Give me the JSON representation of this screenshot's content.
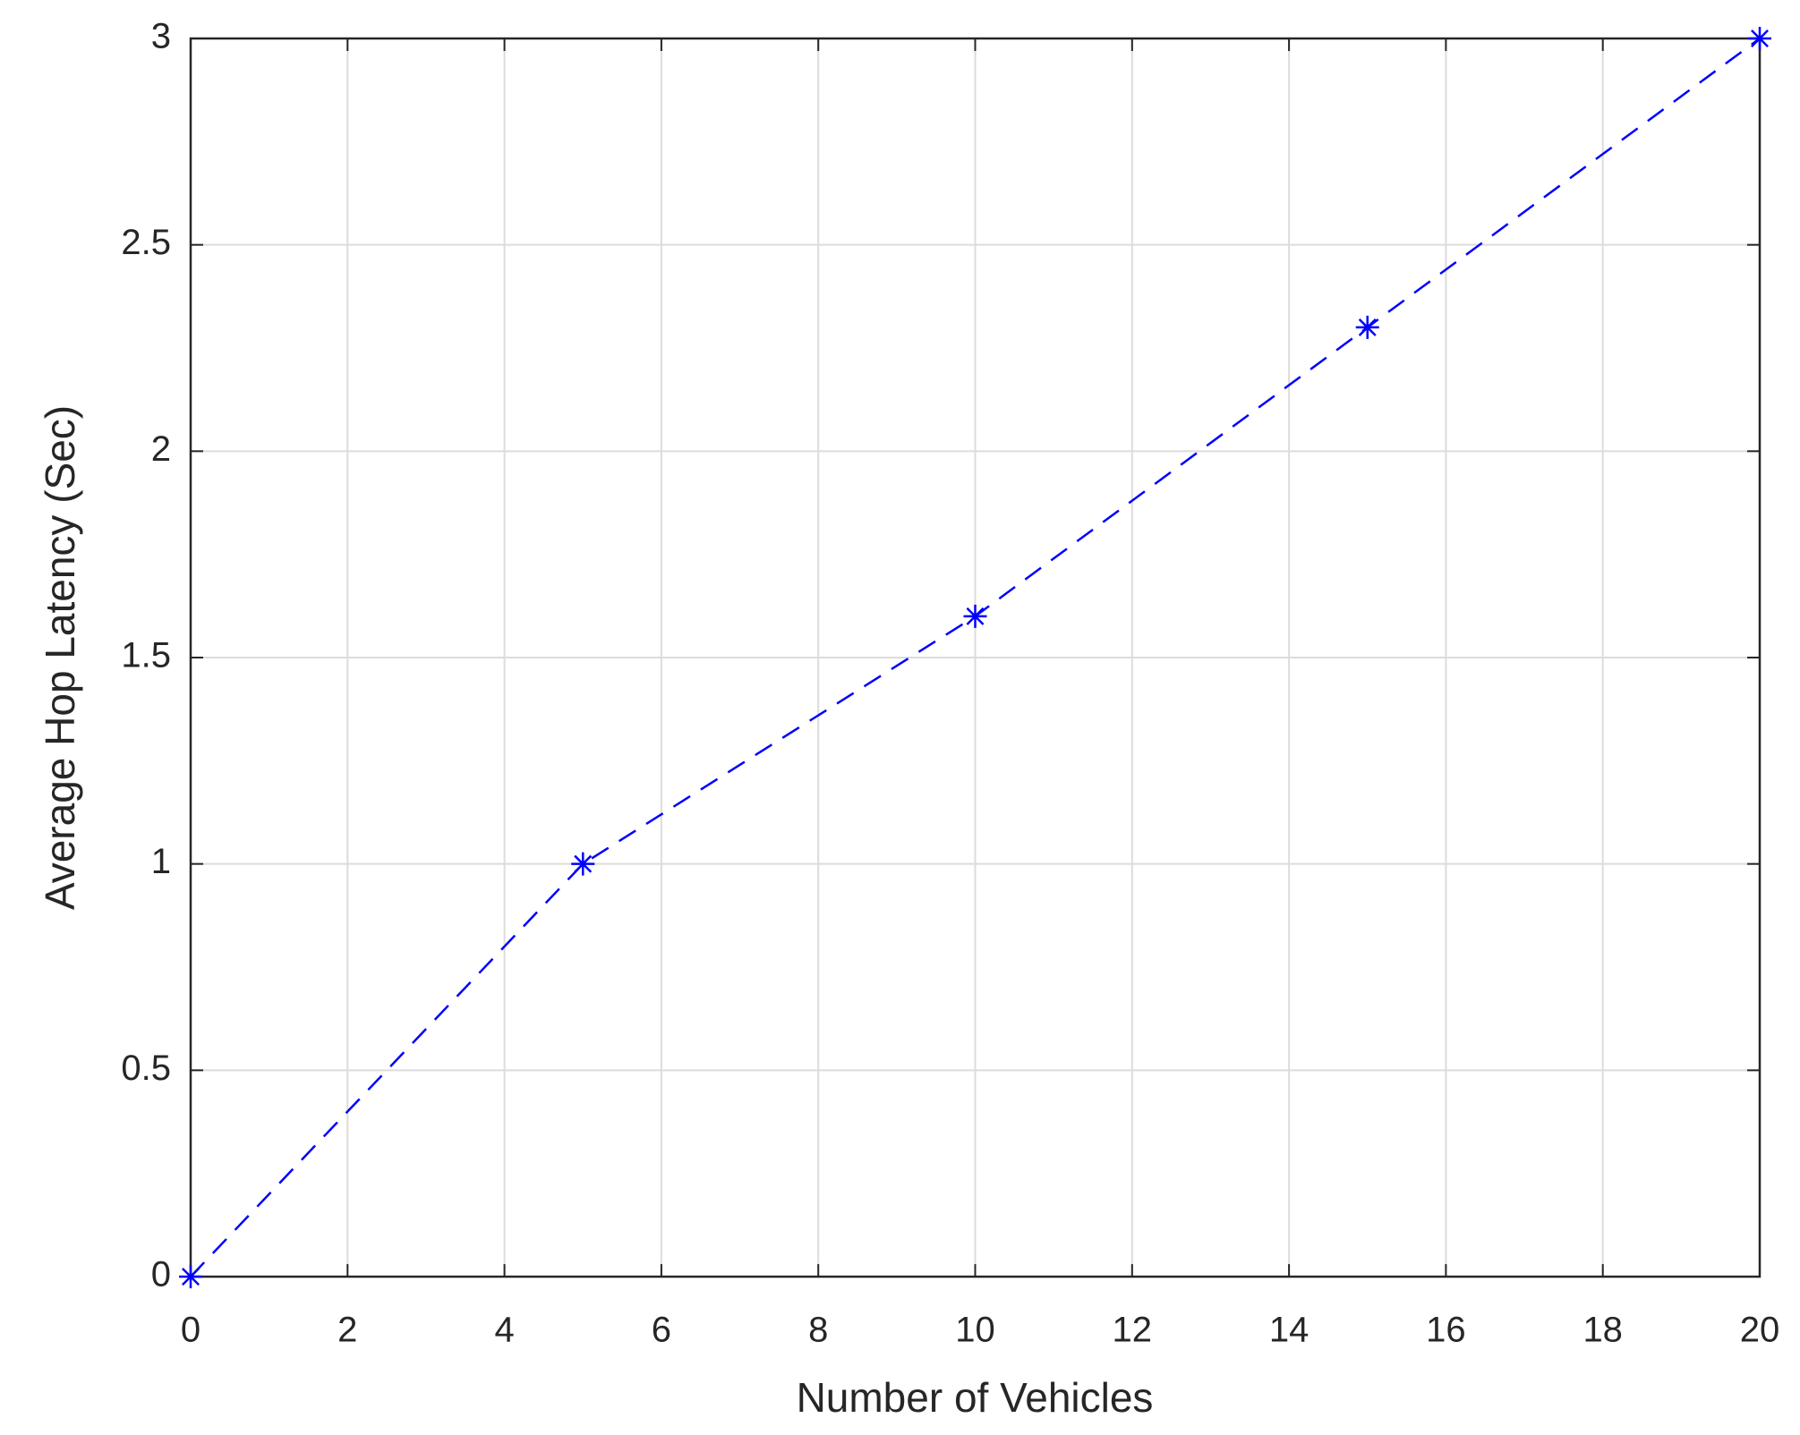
{
  "chart_data": {
    "type": "line",
    "x_label": "Number of Vehicles",
    "y_label": "Average Hop Latency (Sec)",
    "x": [
      0,
      5,
      10,
      15,
      20
    ],
    "series": [
      {
        "color": "#0000ff",
        "values": [
          0,
          1,
          1.6,
          2.3,
          3
        ]
      }
    ],
    "xlim": [
      0,
      20
    ],
    "xticks": [
      0,
      2,
      4,
      6,
      8,
      10,
      12,
      14,
      16,
      18,
      20
    ],
    "ylim": [
      0,
      3
    ],
    "yticks": [
      0,
      0.5,
      1,
      1.5,
      2,
      2.5,
      3
    ],
    "grid": true
  }
}
